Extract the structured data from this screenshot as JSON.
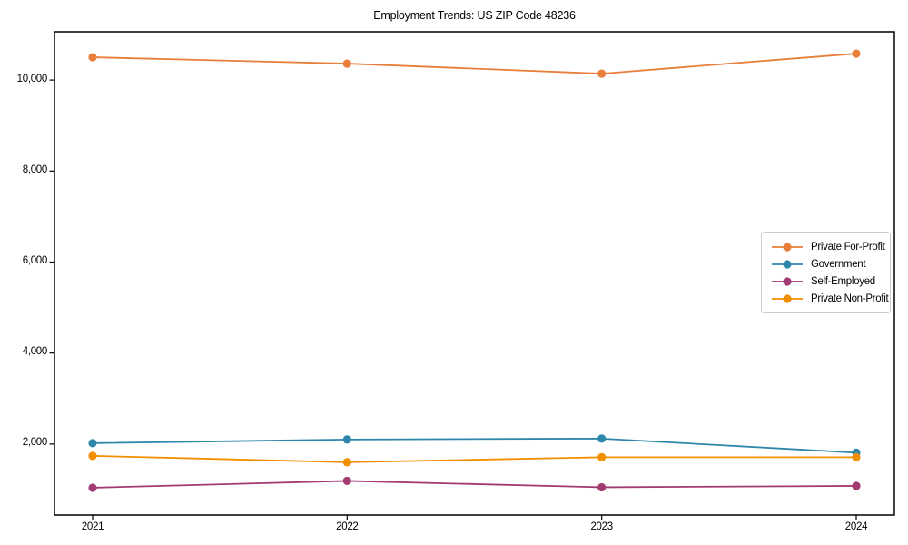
{
  "title": "Employment Trends: US ZIP Code 48236",
  "chart_data": {
    "type": "line",
    "title": "Employment Trends: US ZIP Code 48236",
    "x": [
      2021,
      2022,
      2023,
      2024
    ],
    "xtick_labels": [
      "2021",
      "2022",
      "2023",
      "2024"
    ],
    "yticks": [
      2000,
      4000,
      6000,
      8000,
      10000
    ],
    "ytick_labels": [
      "2,000",
      "4,000",
      "6,000",
      "8,000",
      "10,000"
    ],
    "ylim": [
      440,
      11060
    ],
    "xlabel": "",
    "ylabel": "",
    "grid": false,
    "legend_position": "center-right",
    "series": [
      {
        "name": "Private For-Profit",
        "color": "#E87E3A",
        "values": [
          10500,
          10360,
          10140,
          10580
        ]
      },
      {
        "name": "Government",
        "color": "#2E86AB",
        "values": [
          2020,
          2100,
          2120,
          1810
        ]
      },
      {
        "name": "Self-Employed",
        "color": "#A23B72",
        "values": [
          1040,
          1190,
          1050,
          1080
        ]
      },
      {
        "name": "Private Non-Profit",
        "color": "#F18F01",
        "values": [
          1740,
          1600,
          1710,
          1710
        ]
      }
    ],
    "axis_color": "#000000"
  }
}
